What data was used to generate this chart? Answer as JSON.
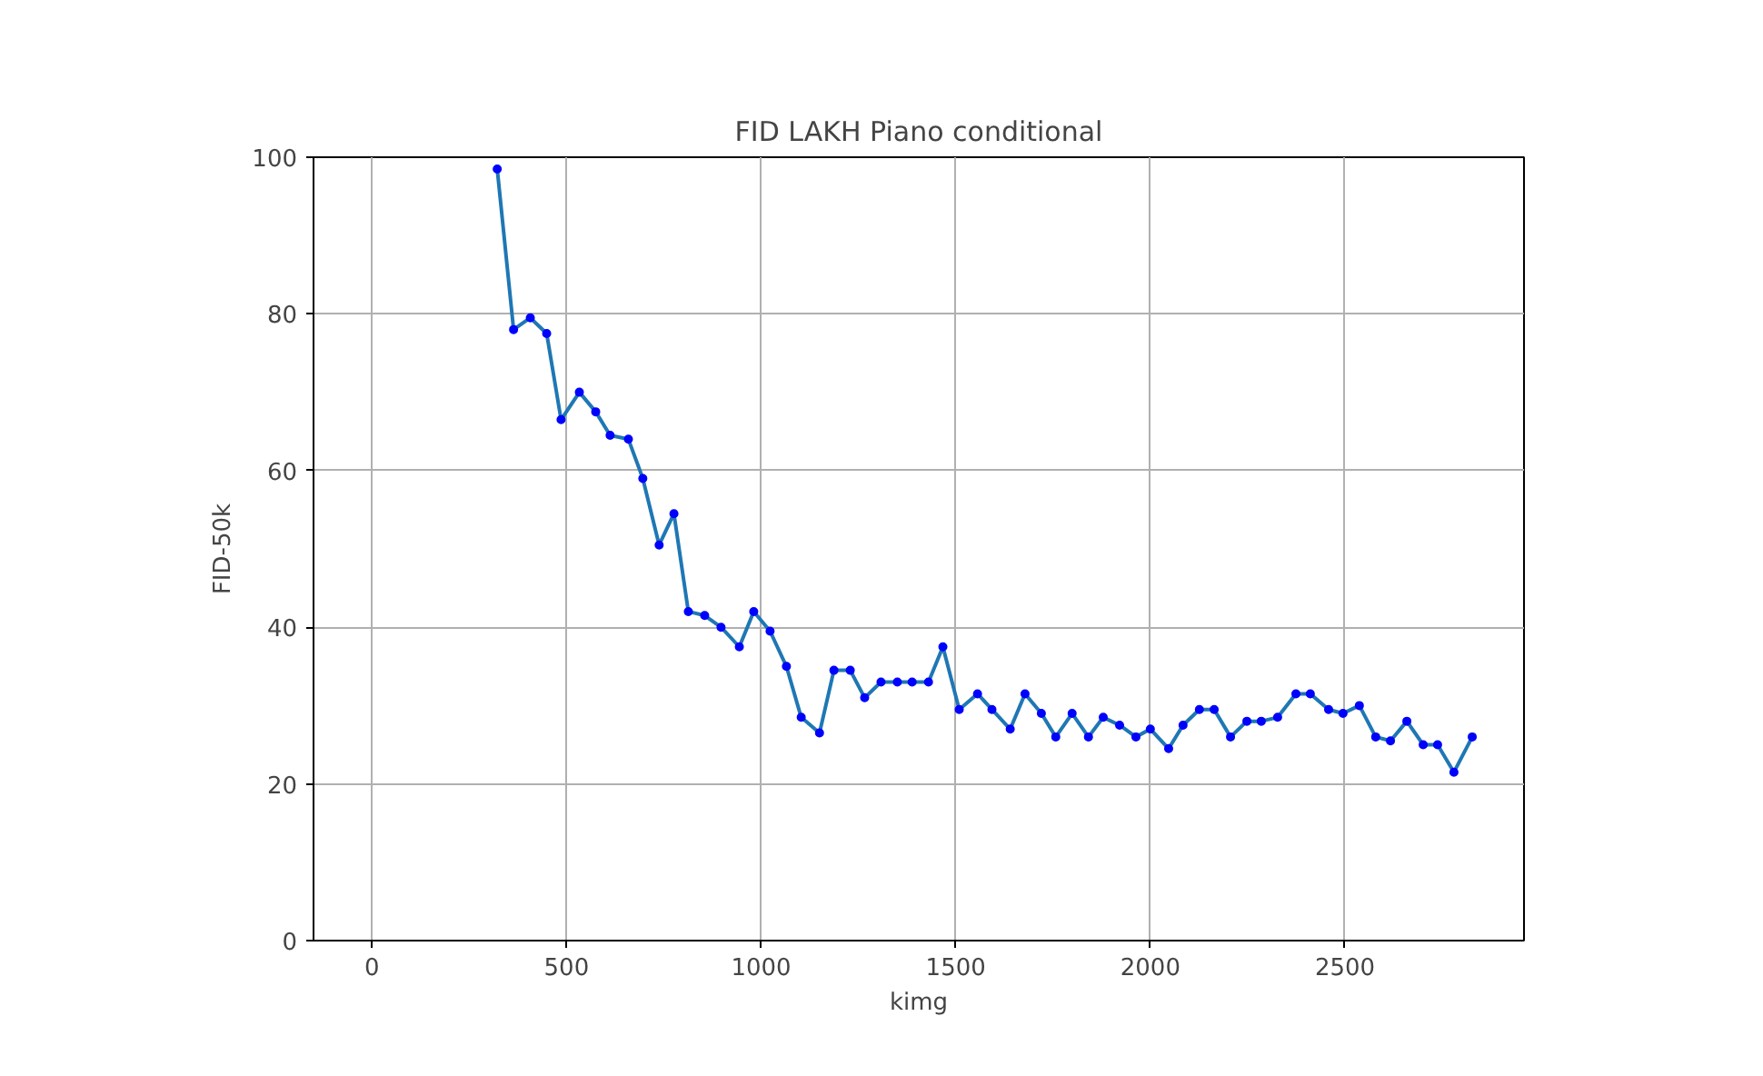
{
  "chart_data": {
    "type": "line",
    "title": "FID LAKH Piano conditional",
    "xlabel": "kimg",
    "ylabel": "FID-50k",
    "x": [
      322,
      364,
      407,
      449,
      486,
      533,
      575,
      612,
      659,
      696,
      738,
      776,
      813,
      855,
      897,
      944,
      981,
      1023,
      1065,
      1103,
      1150,
      1187,
      1229,
      1266,
      1308,
      1350,
      1388,
      1430,
      1467,
      1509,
      1556,
      1593,
      1640,
      1678,
      1720,
      1757,
      1799,
      1841,
      1879,
      1921,
      1963,
      2000,
      2047,
      2084,
      2126,
      2164,
      2206,
      2248,
      2285,
      2327,
      2374,
      2411,
      2458,
      2495,
      2537,
      2579,
      2617,
      2659,
      2701,
      2738,
      2780,
      2827
    ],
    "series": [
      {
        "color": "#1f77b4",
        "values": [
          98.5,
          78,
          79.5,
          77.5,
          66.5,
          70,
          67.5,
          64.5,
          64,
          59,
          50.5,
          54.5,
          42,
          41.5,
          40,
          37.5,
          42,
          39.5,
          35,
          28.5,
          26.5,
          34.5,
          34.5,
          31,
          33,
          33,
          33,
          33,
          37.5,
          29.5,
          31.5,
          29.5,
          27,
          31.5,
          29,
          26,
          29,
          26,
          28.5,
          27.5,
          26,
          27,
          24.5,
          27.5,
          29.5,
          29.5,
          26,
          28,
          28,
          28.5,
          31.5,
          31.5,
          29.5,
          29,
          30,
          26,
          25.5,
          28,
          25,
          25,
          21.5,
          26
        ]
      }
    ],
    "marker": "circle",
    "xlim": [
      -150,
      2960
    ],
    "ylim": [
      0,
      100
    ],
    "xticks": [
      0,
      500,
      1000,
      1500,
      2000,
      2500
    ],
    "yticks": [
      0,
      20,
      40,
      60,
      80,
      100
    ],
    "grid": true
  }
}
